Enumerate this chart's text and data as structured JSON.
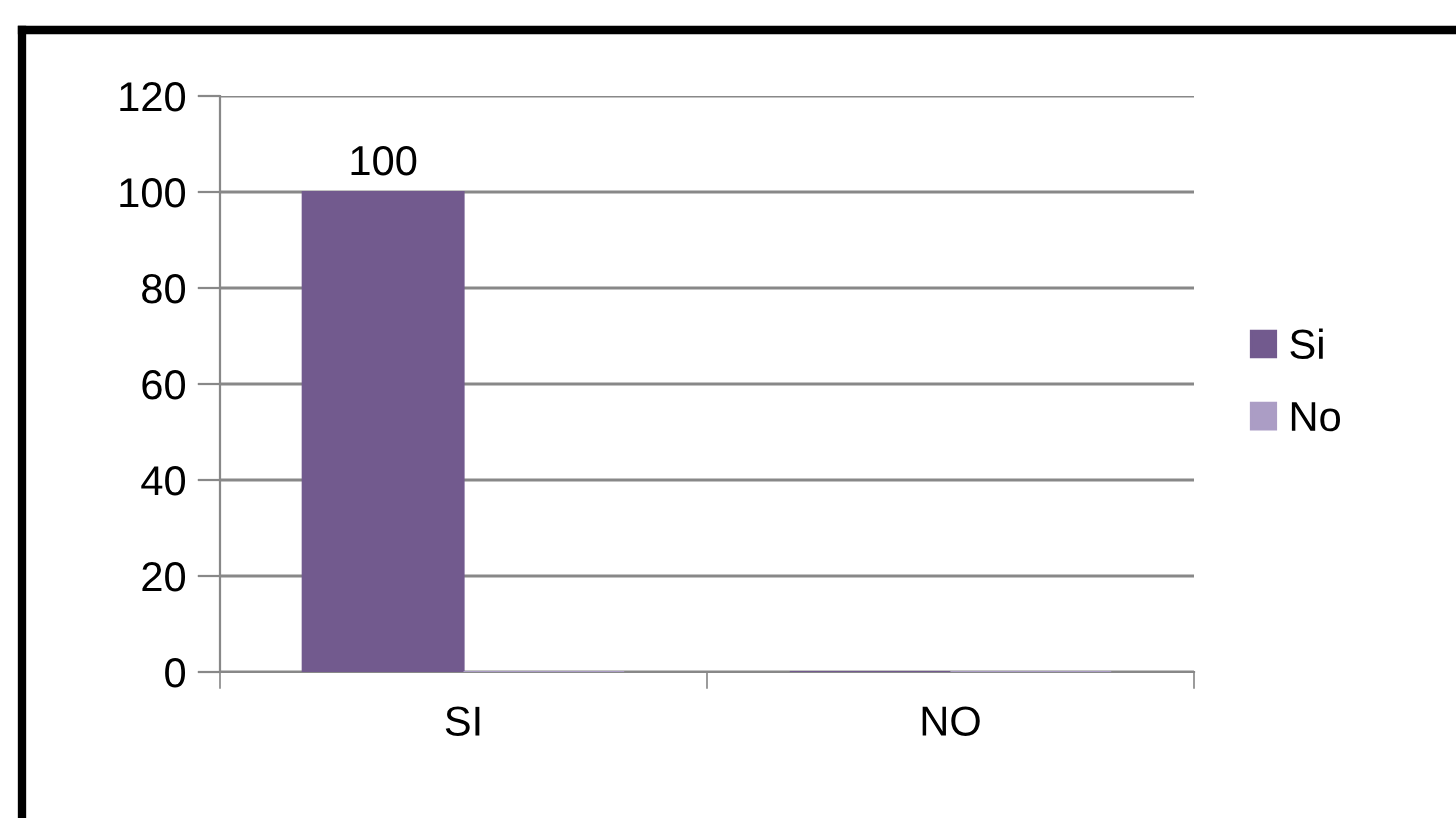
{
  "chart_data": {
    "type": "bar",
    "categories": [
      "SI",
      "NO"
    ],
    "series": [
      {
        "name": "Si",
        "color": "#725a8e",
        "values": [
          100,
          0
        ],
        "value_labels": [
          "100",
          null
        ]
      },
      {
        "name": "No",
        "color": "#ab9dc5",
        "values": [
          0,
          0
        ],
        "value_labels": [
          null,
          null
        ]
      }
    ],
    "ylim": [
      0,
      120
    ],
    "yticks": [
      0,
      20,
      40,
      60,
      80,
      100,
      120
    ],
    "grid": "y",
    "legend": "right"
  }
}
